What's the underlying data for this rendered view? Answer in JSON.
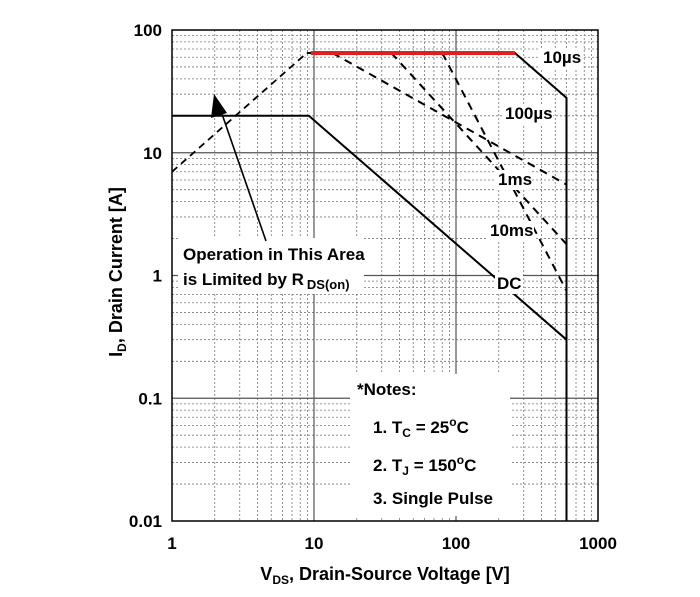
{
  "chart_data": {
    "type": "line",
    "x_scale": "log",
    "y_scale": "log",
    "xlim": [
      1,
      1000
    ],
    "ylim": [
      0.01,
      100
    ],
    "xlabel": "VDS, Drain-Source Voltage [V]",
    "xlabel_main": "V",
    "xlabel_sub": "DS",
    "xlabel_rest": ", Drain-Source Voltage [V]",
    "ylabel": "ID, Drain Current [A]",
    "ylabel_main": "I",
    "ylabel_sub": "D",
    "ylabel_rest": ", Drain Current [A]",
    "x_ticks": [
      "1",
      "10",
      "100",
      "1000"
    ],
    "y_ticks": [
      "0.01",
      "0.1",
      "1",
      "10",
      "100"
    ],
    "grid": true,
    "series": [
      {
        "name": "10µs",
        "x": [
          8.9,
          260,
          600,
          600
        ],
        "y": [
          65,
          65,
          28,
          0.01
        ],
        "style": "solid"
      },
      {
        "name": "100µs",
        "x": [
          13.5,
          600
        ],
        "y": [
          65,
          5.5
        ],
        "style": "dashed"
      },
      {
        "name": "1ms",
        "x": [
          35,
          600
        ],
        "y": [
          65,
          1.8
        ],
        "style": "dashed"
      },
      {
        "name": "10ms",
        "x": [
          80,
          600
        ],
        "y": [
          65,
          0.75
        ],
        "style": "dashed"
      },
      {
        "name": "DC",
        "x": [
          1,
          9.2,
          600
        ],
        "y": [
          20,
          20,
          0.3
        ],
        "style": "solid"
      }
    ],
    "limit_line": {
      "x": [
        1,
        8.9
      ],
      "y": [
        7,
        65
      ],
      "style": "dashed"
    },
    "highlight": {
      "x": [
        9.5,
        260
      ],
      "y": [
        65,
        65
      ],
      "color": "#e02020"
    },
    "curve_labels": [
      "10µs",
      "100µs",
      "1ms",
      "10ms",
      "DC"
    ],
    "annotation": {
      "line1": "Operation in This Area",
      "line2": "is Limited by R",
      "line2_sub": "DS(on)"
    },
    "notes": {
      "title": "*Notes:",
      "n1_prefix": "1. T",
      "n1_sub": "C",
      "n1_mid": " = 25",
      "n1_sup": "o",
      "n1_suffix": "C",
      "n2_prefix": "2. T",
      "n2_sub": "J",
      "n2_mid": " = 150",
      "n2_sup": "o",
      "n2_suffix": "C",
      "n3": "3. Single Pulse"
    }
  }
}
